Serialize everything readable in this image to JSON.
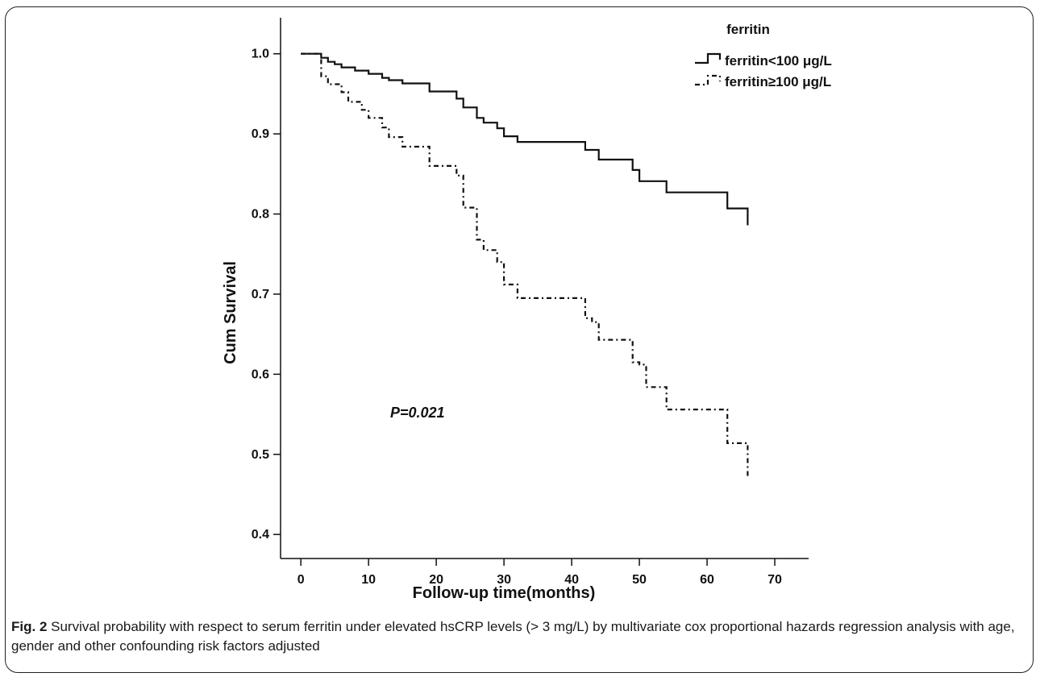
{
  "caption": {
    "label": "Fig. 2",
    "text": "Survival probability with respect to serum ferritin under elevated hsCRP levels (> 3 mg/L) by multivariate cox proportional hazards regression analysis with age, gender and other confounding risk factors adjusted"
  },
  "chart_data": {
    "type": "line",
    "subtype": "kaplan-meier step",
    "xlabel": "Follow-up time(months)",
    "ylabel": "Cum Survival",
    "xlim": [
      -3,
      75
    ],
    "ylim": [
      0.37,
      1.045
    ],
    "xticks": [
      0,
      10,
      20,
      30,
      40,
      50,
      60,
      70
    ],
    "yticks": [
      0.4,
      0.5,
      0.6,
      0.7,
      0.8,
      0.9,
      1.0
    ],
    "xtick_labels": [
      "0",
      "10",
      "20",
      "30",
      "40",
      "50",
      "60",
      "70"
    ],
    "ytick_labels": [
      "0.4",
      "0.5",
      "0.6",
      "0.7",
      "0.8",
      "0.9",
      "1.0"
    ],
    "legend": {
      "title": "ferritin",
      "position": "top-right"
    },
    "annotation": "P=0.021",
    "grid": false,
    "series": [
      {
        "name": "ferritin<100 μg/L",
        "style": "solid",
        "color": "#111111",
        "points": [
          [
            0,
            1.0
          ],
          [
            3,
            0.995
          ],
          [
            4,
            0.99
          ],
          [
            5,
            0.987
          ],
          [
            6,
            0.983
          ],
          [
            8,
            0.979
          ],
          [
            10,
            0.975
          ],
          [
            12,
            0.97
          ],
          [
            13,
            0.967
          ],
          [
            15,
            0.963
          ],
          [
            19,
            0.953
          ],
          [
            23,
            0.944
          ],
          [
            24,
            0.933
          ],
          [
            26,
            0.92
          ],
          [
            27,
            0.914
          ],
          [
            29,
            0.907
          ],
          [
            30,
            0.897
          ],
          [
            32,
            0.89
          ],
          [
            42,
            0.88
          ],
          [
            44,
            0.868
          ],
          [
            49,
            0.855
          ],
          [
            50,
            0.841
          ],
          [
            54,
            0.827
          ],
          [
            63,
            0.807
          ],
          [
            66,
            0.786
          ]
        ]
      },
      {
        "name": "ferritin≥100 μg/L",
        "style": "dash-dot",
        "color": "#111111",
        "points": [
          [
            0,
            1.0
          ],
          [
            3,
            0.972
          ],
          [
            4,
            0.962
          ],
          [
            6,
            0.952
          ],
          [
            7,
            0.94
          ],
          [
            9,
            0.93
          ],
          [
            10,
            0.92
          ],
          [
            12,
            0.908
          ],
          [
            13,
            0.896
          ],
          [
            15,
            0.884
          ],
          [
            19,
            0.86
          ],
          [
            23,
            0.848
          ],
          [
            24,
            0.834
          ],
          [
            24,
            0.808
          ],
          [
            26,
            0.78
          ],
          [
            26,
            0.768
          ],
          [
            27,
            0.755
          ],
          [
            29,
            0.74
          ],
          [
            30,
            0.712
          ],
          [
            32,
            0.695
          ],
          [
            42,
            0.67
          ],
          [
            43,
            0.665
          ],
          [
            44,
            0.643
          ],
          [
            49,
            0.615
          ],
          [
            50,
            0.612
          ],
          [
            51,
            0.584
          ],
          [
            54,
            0.556
          ],
          [
            63,
            0.528
          ],
          [
            63,
            0.514
          ],
          [
            66,
            0.47
          ]
        ]
      }
    ]
  }
}
